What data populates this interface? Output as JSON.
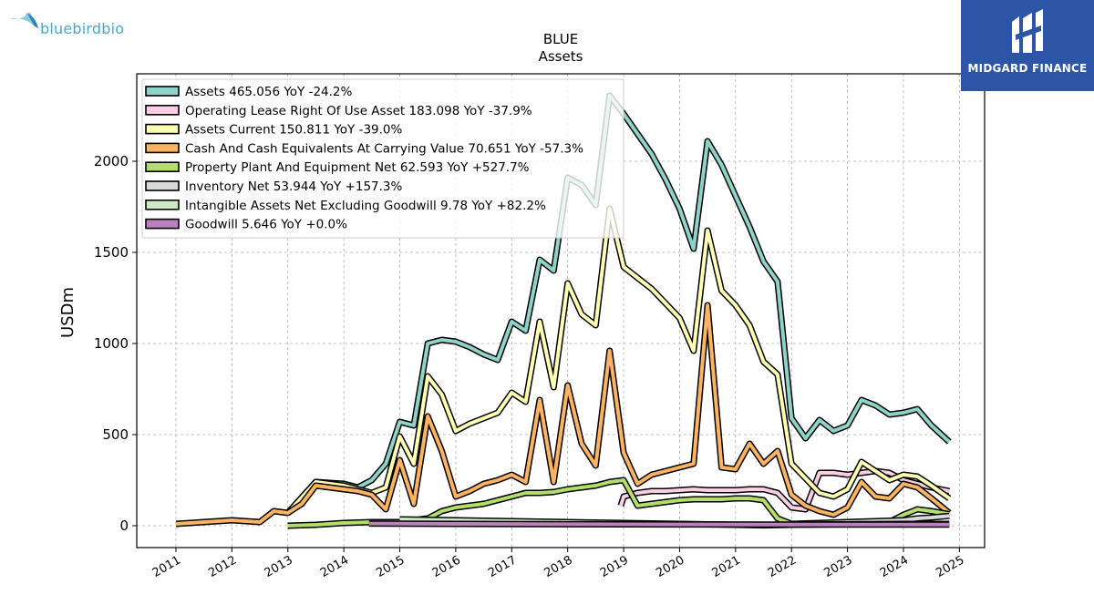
{
  "brand_left": {
    "text": "bluebirdbio"
  },
  "brand_right": {
    "text": "MIDGARD FINANCE"
  },
  "colors": {
    "outline": "#000000",
    "grid": "#b0b0b0",
    "brand_blue": "#2c55a8",
    "brand_cyan": "#4aa8c9"
  },
  "chart_data": {
    "type": "line",
    "title": "BLUE",
    "subtitle": "Assets",
    "ylabel": "USDm",
    "xlabel": "",
    "xlim": [
      2010.3,
      2025.45
    ],
    "ylim": [
      -120,
      2480
    ],
    "x_ticks": [
      2011,
      2012,
      2013,
      2014,
      2015,
      2016,
      2017,
      2018,
      2019,
      2020,
      2021,
      2022,
      2023,
      2024,
      2025
    ],
    "x_tick_labels": [
      "2011",
      "2012",
      "2013",
      "2014",
      "2015",
      "2016",
      "2017",
      "2018",
      "2019",
      "2020",
      "2021",
      "2022",
      "2023",
      "2024",
      "2025"
    ],
    "y_ticks": [
      0,
      500,
      1000,
      1500,
      2000
    ],
    "y_tick_labels": [
      "0",
      "500",
      "1000",
      "1500",
      "2000"
    ],
    "grid": true,
    "legend_position": "top-left",
    "series": [
      {
        "name": "Assets",
        "legend": "Assets  465.056 YoY -24.2%",
        "color": "#8dd3c7",
        "points": [
          [
            2013.0,
            70
          ],
          [
            2013.5,
            240
          ],
          [
            2014.0,
            230
          ],
          [
            2014.25,
            210
          ],
          [
            2014.5,
            250
          ],
          [
            2014.75,
            340
          ],
          [
            2015.0,
            570
          ],
          [
            2015.25,
            550
          ],
          [
            2015.5,
            1000
          ],
          [
            2015.75,
            1020
          ],
          [
            2016.0,
            1010
          ],
          [
            2016.25,
            980
          ],
          [
            2016.5,
            940
          ],
          [
            2016.75,
            910
          ],
          [
            2017.0,
            1120
          ],
          [
            2017.25,
            1070
          ],
          [
            2017.5,
            1460
          ],
          [
            2017.75,
            1400
          ],
          [
            2018.0,
            1910
          ],
          [
            2018.25,
            1870
          ],
          [
            2018.5,
            1760
          ],
          [
            2018.75,
            2360
          ],
          [
            2019.0,
            2260
          ],
          [
            2019.25,
            2150
          ],
          [
            2019.5,
            2040
          ],
          [
            2019.75,
            1900
          ],
          [
            2020.0,
            1740
          ],
          [
            2020.25,
            1520
          ],
          [
            2020.5,
            2110
          ],
          [
            2020.75,
            1980
          ],
          [
            2021.0,
            1810
          ],
          [
            2021.25,
            1640
          ],
          [
            2021.5,
            1450
          ],
          [
            2021.75,
            1340
          ],
          [
            2022.0,
            590
          ],
          [
            2022.25,
            480
          ],
          [
            2022.5,
            580
          ],
          [
            2022.75,
            520
          ],
          [
            2023.0,
            550
          ],
          [
            2023.25,
            690
          ],
          [
            2023.5,
            660
          ],
          [
            2023.75,
            610
          ],
          [
            2024.0,
            620
          ],
          [
            2024.25,
            640
          ],
          [
            2024.5,
            550
          ],
          [
            2024.82,
            460
          ]
        ]
      },
      {
        "name": "Operating Lease Right Of Use Asset",
        "legend": "Operating Lease Right Of Use Asset  183.098 YoY -37.9%",
        "color": "#fccde5",
        "points": [
          [
            2018.95,
            110
          ],
          [
            2019.0,
            160
          ],
          [
            2019.25,
            180
          ],
          [
            2019.5,
            190
          ],
          [
            2019.75,
            190
          ],
          [
            2020.0,
            195
          ],
          [
            2020.25,
            200
          ],
          [
            2020.5,
            195
          ],
          [
            2020.75,
            195
          ],
          [
            2021.0,
            195
          ],
          [
            2021.25,
            200
          ],
          [
            2021.5,
            200
          ],
          [
            2021.75,
            180
          ],
          [
            2022.0,
            100
          ],
          [
            2022.25,
            90
          ],
          [
            2022.5,
            290
          ],
          [
            2022.75,
            290
          ],
          [
            2023.0,
            280
          ],
          [
            2023.25,
            290
          ],
          [
            2023.5,
            300
          ],
          [
            2023.75,
            290
          ],
          [
            2024.0,
            250
          ],
          [
            2024.25,
            230
          ],
          [
            2024.5,
            210
          ],
          [
            2024.82,
            190
          ]
        ]
      },
      {
        "name": "Assets Current",
        "legend": "Assets Current  150.811 YoY -39.0%",
        "color": "#ffffb3",
        "points": [
          [
            2013.0,
            70
          ],
          [
            2013.5,
            240
          ],
          [
            2014.0,
            220
          ],
          [
            2014.25,
            200
          ],
          [
            2014.5,
            180
          ],
          [
            2014.75,
            210
          ],
          [
            2015.0,
            490
          ],
          [
            2015.25,
            340
          ],
          [
            2015.5,
            820
          ],
          [
            2015.75,
            720
          ],
          [
            2016.0,
            520
          ],
          [
            2016.25,
            560
          ],
          [
            2016.5,
            590
          ],
          [
            2016.75,
            620
          ],
          [
            2017.0,
            730
          ],
          [
            2017.25,
            680
          ],
          [
            2017.5,
            1120
          ],
          [
            2017.75,
            760
          ],
          [
            2018.0,
            1330
          ],
          [
            2018.25,
            1160
          ],
          [
            2018.5,
            1100
          ],
          [
            2018.75,
            1740
          ],
          [
            2019.0,
            1420
          ],
          [
            2019.25,
            1360
          ],
          [
            2019.5,
            1300
          ],
          [
            2019.75,
            1220
          ],
          [
            2020.0,
            1140
          ],
          [
            2020.25,
            960
          ],
          [
            2020.5,
            1620
          ],
          [
            2020.75,
            1290
          ],
          [
            2021.0,
            1210
          ],
          [
            2021.25,
            1100
          ],
          [
            2021.5,
            900
          ],
          [
            2021.75,
            830
          ],
          [
            2022.0,
            340
          ],
          [
            2022.25,
            260
          ],
          [
            2022.5,
            180
          ],
          [
            2022.75,
            160
          ],
          [
            2023.0,
            200
          ],
          [
            2023.25,
            350
          ],
          [
            2023.5,
            300
          ],
          [
            2023.75,
            250
          ],
          [
            2024.0,
            280
          ],
          [
            2024.25,
            270
          ],
          [
            2024.5,
            220
          ],
          [
            2024.82,
            150
          ]
        ]
      },
      {
        "name": "Cash And Cash Equivalents At Carrying Value",
        "legend": "Cash And Cash Equivalents At Carrying Value  70.651 YoY -57.3%",
        "color": "#fdb462",
        "points": [
          [
            2011.0,
            10
          ],
          [
            2011.5,
            20
          ],
          [
            2012.0,
            30
          ],
          [
            2012.5,
            20
          ],
          [
            2012.75,
            80
          ],
          [
            2013.0,
            70
          ],
          [
            2013.25,
            120
          ],
          [
            2013.5,
            220
          ],
          [
            2014.0,
            200
          ],
          [
            2014.25,
            190
          ],
          [
            2014.5,
            170
          ],
          [
            2014.75,
            90
          ],
          [
            2015.0,
            360
          ],
          [
            2015.25,
            120
          ],
          [
            2015.5,
            600
          ],
          [
            2015.75,
            410
          ],
          [
            2016.0,
            160
          ],
          [
            2016.25,
            190
          ],
          [
            2016.5,
            230
          ],
          [
            2016.75,
            250
          ],
          [
            2017.0,
            280
          ],
          [
            2017.25,
            240
          ],
          [
            2017.5,
            690
          ],
          [
            2017.75,
            240
          ],
          [
            2018.0,
            770
          ],
          [
            2018.25,
            450
          ],
          [
            2018.5,
            330
          ],
          [
            2018.75,
            960
          ],
          [
            2019.0,
            400
          ],
          [
            2019.25,
            230
          ],
          [
            2019.5,
            280
          ],
          [
            2019.75,
            300
          ],
          [
            2020.0,
            320
          ],
          [
            2020.25,
            340
          ],
          [
            2020.5,
            1210
          ],
          [
            2020.75,
            320
          ],
          [
            2021.0,
            310
          ],
          [
            2021.25,
            450
          ],
          [
            2021.5,
            340
          ],
          [
            2021.75,
            410
          ],
          [
            2022.0,
            170
          ],
          [
            2022.25,
            110
          ],
          [
            2022.5,
            80
          ],
          [
            2022.75,
            60
          ],
          [
            2023.0,
            100
          ],
          [
            2023.25,
            240
          ],
          [
            2023.5,
            160
          ],
          [
            2023.75,
            150
          ],
          [
            2024.0,
            230
          ],
          [
            2024.25,
            210
          ],
          [
            2024.5,
            150
          ],
          [
            2024.82,
            70
          ]
        ]
      },
      {
        "name": "Property Plant And Equipment Net",
        "legend": "Property Plant And Equipment Net  62.593 YoY +527.7%",
        "color": "#b3de69",
        "points": [
          [
            2013.0,
            0
          ],
          [
            2013.5,
            5
          ],
          [
            2014.0,
            15
          ],
          [
            2014.5,
            20
          ],
          [
            2015.0,
            20
          ],
          [
            2015.5,
            40
          ],
          [
            2015.75,
            80
          ],
          [
            2016.0,
            100
          ],
          [
            2016.5,
            120
          ],
          [
            2016.75,
            140
          ],
          [
            2017.0,
            160
          ],
          [
            2017.25,
            180
          ],
          [
            2017.5,
            180
          ],
          [
            2017.75,
            185
          ],
          [
            2018.0,
            200
          ],
          [
            2018.25,
            210
          ],
          [
            2018.5,
            220
          ],
          [
            2018.75,
            240
          ],
          [
            2019.0,
            250
          ],
          [
            2019.25,
            110
          ],
          [
            2019.5,
            120
          ],
          [
            2019.75,
            130
          ],
          [
            2020.0,
            140
          ],
          [
            2020.25,
            145
          ],
          [
            2020.5,
            145
          ],
          [
            2020.75,
            145
          ],
          [
            2021.0,
            150
          ],
          [
            2021.25,
            150
          ],
          [
            2021.5,
            140
          ],
          [
            2021.75,
            40
          ],
          [
            2022.0,
            10
          ],
          [
            2022.5,
            10
          ],
          [
            2023.0,
            10
          ],
          [
            2023.5,
            10
          ],
          [
            2023.75,
            20
          ],
          [
            2024.0,
            60
          ],
          [
            2024.25,
            90
          ],
          [
            2024.5,
            80
          ],
          [
            2024.82,
            63
          ]
        ]
      },
      {
        "name": "Inventory Net",
        "legend": "Inventory Net  53.944 YoY +157.3%",
        "color": "#d9d9d9",
        "points": [
          [
            2022.0,
            10
          ],
          [
            2022.5,
            15
          ],
          [
            2023.0,
            20
          ],
          [
            2023.5,
            25
          ],
          [
            2024.0,
            30
          ],
          [
            2024.25,
            40
          ],
          [
            2024.5,
            45
          ],
          [
            2024.82,
            54
          ]
        ]
      },
      {
        "name": "Intangible Assets Net Excluding Goodwill",
        "legend": "Intangible Assets Net Excluding Goodwill  9.78 YoY +82.2%",
        "color": "#ccebc5",
        "points": [
          [
            2015.0,
            35
          ],
          [
            2016.0,
            30
          ],
          [
            2017.0,
            25
          ],
          [
            2018.0,
            20
          ],
          [
            2019.0,
            15
          ],
          [
            2020.0,
            10
          ],
          [
            2021.0,
            5
          ],
          [
            2021.5,
            2
          ],
          [
            2022.0,
            5
          ],
          [
            2023.0,
            8
          ],
          [
            2024.0,
            10
          ],
          [
            2024.82,
            10
          ]
        ]
      },
      {
        "name": "Goodwill",
        "legend": "Goodwill  5.646 YoY +0.0%",
        "color": "#bc80bd",
        "points": [
          [
            2014.45,
            12
          ],
          [
            2016.0,
            10
          ],
          [
            2018.0,
            8
          ],
          [
            2020.0,
            7
          ],
          [
            2022.0,
            6
          ],
          [
            2024.82,
            6
          ]
        ]
      }
    ]
  }
}
